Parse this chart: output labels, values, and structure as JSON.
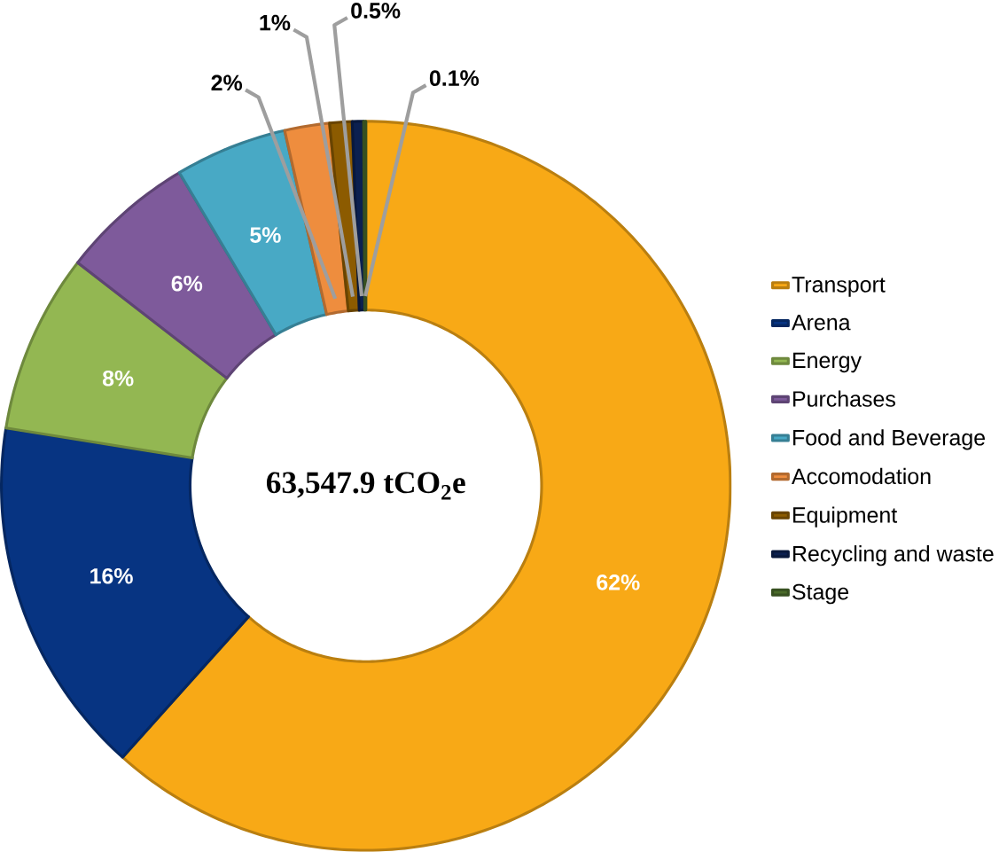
{
  "chart_data": {
    "type": "donut",
    "categories": [
      "Transport",
      "Arena",
      "Energy",
      "Purchases",
      "Food and Beverage",
      "Accomodation",
      "Equipment",
      "Recycling and waste",
      "Stage"
    ],
    "values": [
      62,
      16,
      8,
      6,
      5,
      2,
      1,
      0.5,
      0.1
    ],
    "colors": [
      "#f8a916",
      "#073482",
      "#93b752",
      "#7e5a9b",
      "#48a9c5",
      "#ee8d3e",
      "#8c5b00",
      "#0b2050",
      "#4a6b2a"
    ],
    "value_labels": [
      "62%",
      "16%",
      "8%",
      "6%",
      "5%",
      "2%",
      "1%",
      "0.5%",
      "0.1%"
    ],
    "annotations": [
      "63,547.9 tCO$_{2}$e"
    ],
    "legend": "right"
  }
}
